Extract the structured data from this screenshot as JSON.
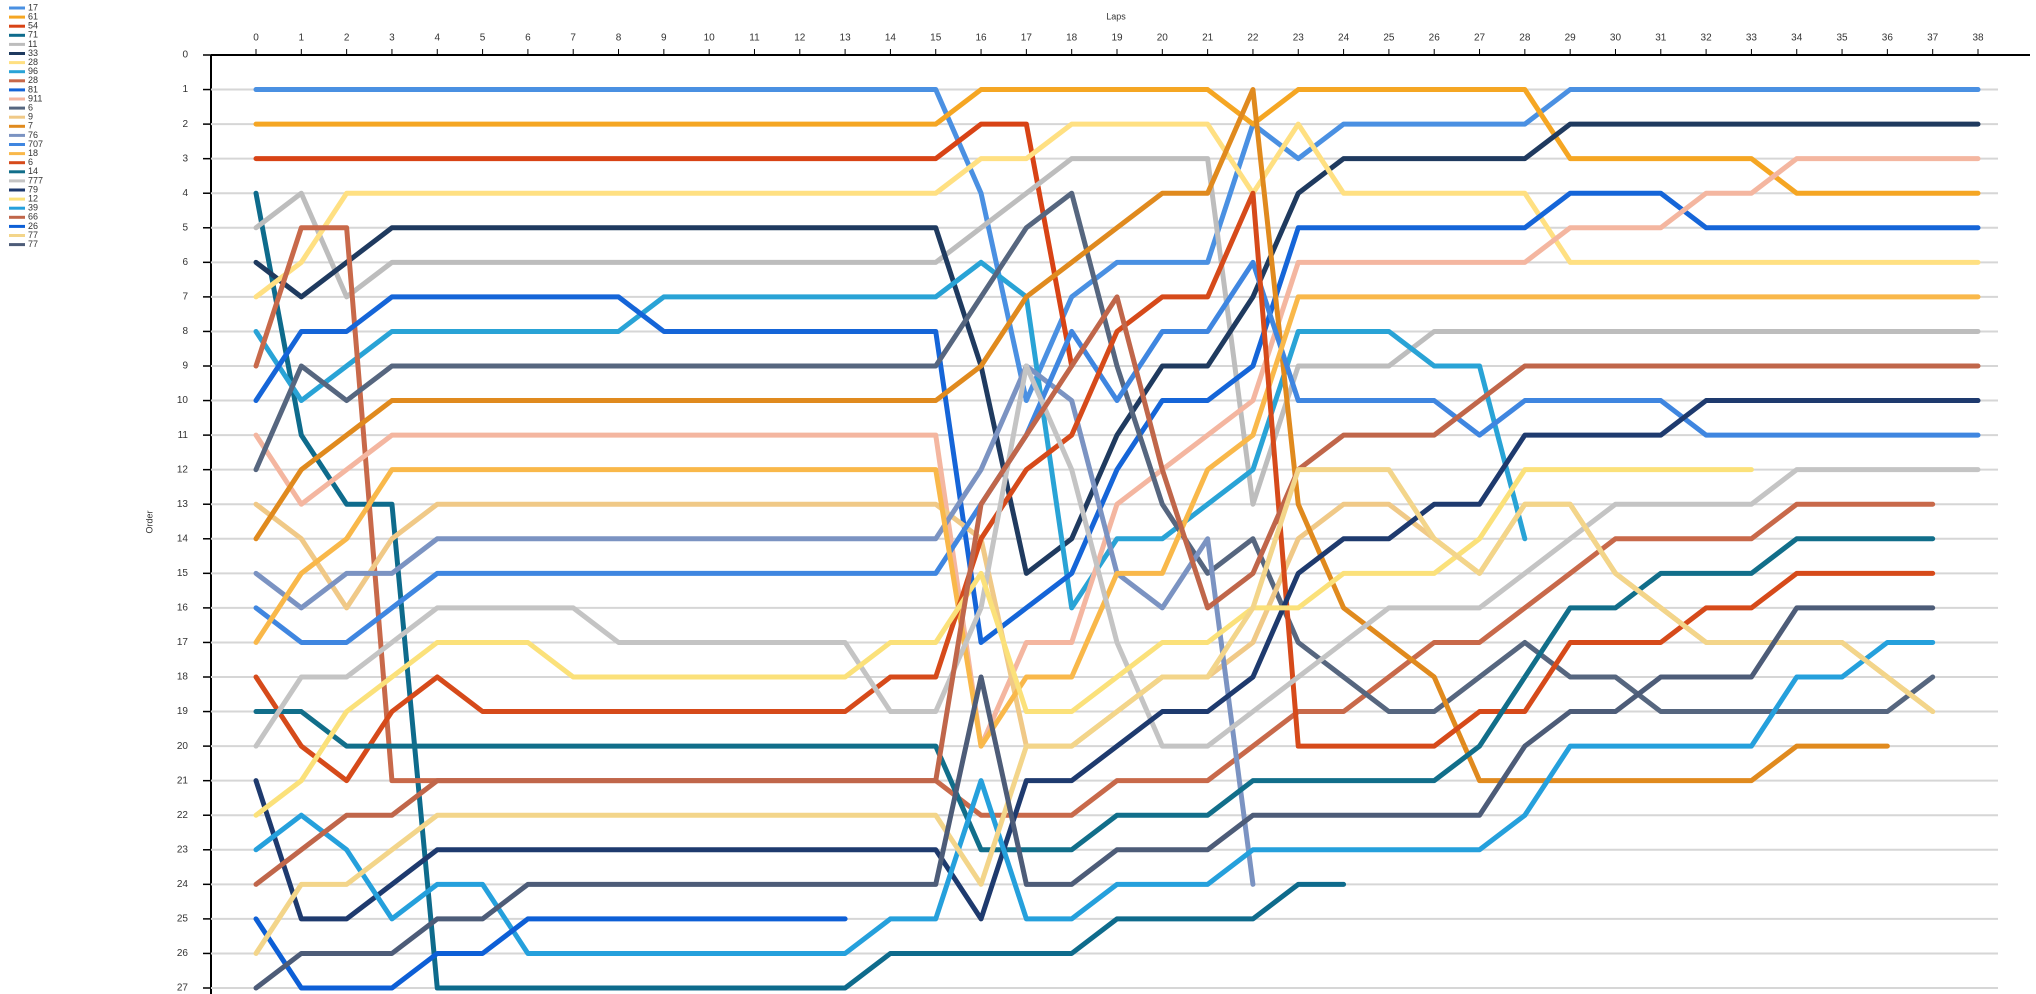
{
  "chart_data": {
    "type": "line",
    "x_label": "Laps",
    "y_label": "Order",
    "y_inverted": true,
    "grid": true,
    "legend": "top-left",
    "x": [
      0,
      1,
      2,
      3,
      4,
      5,
      6,
      7,
      8,
      9,
      10,
      11,
      12,
      13,
      14,
      15,
      16,
      17,
      18,
      19,
      20,
      21,
      22,
      23,
      24,
      25,
      26,
      27,
      28,
      29,
      30,
      31,
      32,
      33,
      34,
      35,
      36,
      37,
      38
    ],
    "xlim": [
      0,
      38
    ],
    "ylim": [
      0,
      27
    ],
    "xticks": [
      0,
      1,
      2,
      3,
      4,
      5,
      6,
      7,
      8,
      9,
      10,
      11,
      12,
      13,
      14,
      15,
      16,
      17,
      18,
      19,
      20,
      21,
      22,
      23,
      24,
      25,
      26,
      27,
      28,
      29,
      30,
      31,
      32,
      33,
      34,
      35,
      36,
      37,
      38
    ],
    "yticks": [
      0,
      1,
      2,
      3,
      4,
      5,
      6,
      7,
      8,
      9,
      10,
      11,
      12,
      13,
      14,
      15,
      16,
      17,
      18,
      19,
      20,
      21,
      22,
      23,
      24,
      25,
      26,
      27
    ],
    "series": [
      {
        "name": "17",
        "color": "#4a90e2",
        "values": [
          1,
          1,
          1,
          1,
          1,
          1,
          1,
          1,
          1,
          1,
          1,
          1,
          1,
          1,
          1,
          1,
          4,
          10,
          7,
          6,
          6,
          6,
          2,
          3,
          2,
          2,
          2,
          2,
          2,
          1,
          1,
          1,
          1,
          1,
          1,
          1,
          1,
          1,
          1
        ]
      },
      {
        "name": "61",
        "color": "#f5a623",
        "values": [
          2,
          2,
          2,
          2,
          2,
          2,
          2,
          2,
          2,
          2,
          2,
          2,
          2,
          2,
          2,
          2,
          1,
          1,
          1,
          1,
          1,
          1,
          2,
          1,
          1,
          1,
          1,
          1,
          1,
          3,
          3,
          3,
          3,
          3,
          4,
          4,
          4,
          4,
          4
        ]
      },
      {
        "name": "54",
        "color": "#d84315",
        "values": [
          3,
          3,
          3,
          3,
          3,
          3,
          3,
          3,
          3,
          3,
          3,
          3,
          3,
          3,
          3,
          3,
          2,
          2,
          9,
          null,
          null,
          null,
          null,
          null,
          null,
          null,
          null,
          null,
          null,
          null,
          null,
          null,
          null,
          null,
          null,
          null,
          null,
          null,
          null
        ]
      },
      {
        "name": "71",
        "color": "#0e6b8c",
        "values": [
          4,
          11,
          13,
          13,
          27,
          27,
          27,
          27,
          27,
          27,
          27,
          27,
          27,
          27,
          26,
          26,
          26,
          26,
          26,
          25,
          25,
          25,
          25,
          24,
          24,
          null,
          null,
          null,
          null,
          null,
          null,
          null,
          null,
          null,
          null,
          null,
          null,
          null,
          null
        ]
      },
      {
        "name": "11",
        "color": "#bdbdbd",
        "values": [
          5,
          4,
          7,
          6,
          6,
          6,
          6,
          6,
          6,
          6,
          6,
          6,
          6,
          6,
          6,
          6,
          5,
          4,
          3,
          3,
          3,
          3,
          13,
          9,
          9,
          9,
          8,
          8,
          8,
          8,
          8,
          8,
          8,
          8,
          8,
          8,
          8,
          8,
          8
        ]
      },
      {
        "name": "33",
        "color": "#1f3a5f",
        "values": [
          6,
          7,
          6,
          5,
          5,
          5,
          5,
          5,
          5,
          5,
          5,
          5,
          5,
          5,
          5,
          5,
          9,
          15,
          14,
          11,
          9,
          9,
          7,
          4,
          3,
          3,
          3,
          3,
          3,
          2,
          2,
          2,
          2,
          2,
          2,
          2,
          2,
          2,
          2
        ]
      },
      {
        "name": "28",
        "color": "#ffe082",
        "values": [
          7,
          6,
          4,
          4,
          4,
          4,
          4,
          4,
          4,
          4,
          4,
          4,
          4,
          4,
          4,
          4,
          3,
          3,
          2,
          2,
          2,
          2,
          4,
          2,
          4,
          4,
          4,
          4,
          4,
          6,
          6,
          6,
          6,
          6,
          6,
          6,
          6,
          6,
          6
        ]
      },
      {
        "name": "96",
        "color": "#29a3d6",
        "values": [
          8,
          10,
          9,
          8,
          8,
          8,
          8,
          8,
          8,
          7,
          7,
          7,
          7,
          7,
          7,
          7,
          6,
          7,
          16,
          14,
          14,
          13,
          12,
          8,
          8,
          8,
          9,
          9,
          14,
          null,
          null,
          null,
          null,
          null,
          null,
          null,
          null,
          null,
          null
        ]
      },
      {
        "name": "28",
        "color": "#c8694a",
        "values": [
          9,
          5,
          5,
          21,
          21,
          21,
          21,
          21,
          21,
          21,
          21,
          21,
          21,
          21,
          21,
          21,
          22,
          22,
          22,
          21,
          21,
          21,
          20,
          19,
          19,
          18,
          17,
          17,
          16,
          15,
          14,
          14,
          14,
          14,
          13,
          13,
          13,
          13,
          null
        ]
      },
      {
        "name": "81",
        "color": "#1565d8",
        "values": [
          10,
          8,
          8,
          7,
          7,
          7,
          7,
          7,
          7,
          8,
          8,
          8,
          8,
          8,
          8,
          8,
          17,
          16,
          15,
          12,
          10,
          10,
          9,
          5,
          5,
          5,
          5,
          5,
          5,
          4,
          4,
          4,
          5,
          5,
          5,
          5,
          5,
          5,
          5
        ]
      },
      {
        "name": "911",
        "color": "#f4b6a0",
        "values": [
          11,
          13,
          12,
          11,
          11,
          11,
          11,
          11,
          11,
          11,
          11,
          11,
          11,
          11,
          11,
          11,
          20,
          17,
          17,
          13,
          12,
          11,
          10,
          6,
          6,
          6,
          6,
          6,
          6,
          5,
          5,
          5,
          4,
          4,
          3,
          3,
          3,
          3,
          3
        ]
      },
      {
        "name": "6",
        "color": "#56667f",
        "values": [
          12,
          9,
          10,
          9,
          9,
          9,
          9,
          9,
          9,
          9,
          9,
          9,
          9,
          9,
          9,
          9,
          7,
          5,
          4,
          9,
          13,
          15,
          14,
          17,
          18,
          19,
          19,
          18,
          17,
          18,
          18,
          19,
          19,
          19,
          19,
          19,
          19,
          18,
          null
        ]
      },
      {
        "name": "9",
        "color": "#f0c987",
        "values": [
          13,
          14,
          16,
          14,
          13,
          13,
          13,
          13,
          13,
          13,
          13,
          13,
          13,
          13,
          13,
          13,
          14,
          20,
          20,
          19,
          18,
          18,
          17,
          14,
          13,
          13,
          14,
          15,
          13,
          13,
          15,
          16,
          17,
          17,
          17,
          17,
          18,
          19,
          null
        ]
      },
      {
        "name": "7",
        "color": "#e08a1e",
        "values": [
          14,
          12,
          11,
          10,
          10,
          10,
          10,
          10,
          10,
          10,
          10,
          10,
          10,
          10,
          10,
          10,
          9,
          7,
          6,
          5,
          4,
          4,
          1,
          13,
          16,
          17,
          18,
          21,
          21,
          21,
          21,
          21,
          21,
          21,
          20,
          20,
          20,
          null,
          null
        ]
      },
      {
        "name": "76",
        "color": "#7b93c2",
        "values": [
          15,
          16,
          15,
          15,
          14,
          14,
          14,
          14,
          14,
          14,
          14,
          14,
          14,
          14,
          14,
          14,
          12,
          9,
          10,
          15,
          16,
          14,
          24,
          null,
          null,
          null,
          null,
          null,
          null,
          null,
          null,
          null,
          null,
          null,
          null,
          null,
          null,
          null,
          null
        ]
      },
      {
        "name": "707",
        "color": "#3f86e0",
        "values": [
          16,
          17,
          17,
          16,
          15,
          15,
          15,
          15,
          15,
          15,
          15,
          15,
          15,
          15,
          15,
          15,
          13,
          11,
          8,
          10,
          8,
          8,
          6,
          10,
          10,
          10,
          10,
          11,
          10,
          10,
          10,
          10,
          11,
          11,
          11,
          11,
          11,
          11,
          11
        ]
      },
      {
        "name": "18",
        "color": "#f9b84a",
        "values": [
          17,
          15,
          14,
          12,
          12,
          12,
          12,
          12,
          12,
          12,
          12,
          12,
          12,
          12,
          12,
          12,
          20,
          18,
          18,
          15,
          15,
          12,
          11,
          7,
          7,
          7,
          7,
          7,
          7,
          7,
          7,
          7,
          7,
          7,
          7,
          7,
          7,
          7,
          7
        ]
      },
      {
        "name": "6",
        "color": "#d64a1a",
        "values": [
          18,
          20,
          21,
          19,
          18,
          19,
          19,
          19,
          19,
          19,
          19,
          19,
          19,
          19,
          18,
          18,
          14,
          12,
          11,
          8,
          7,
          7,
          4,
          20,
          20,
          20,
          20,
          19,
          19,
          17,
          17,
          17,
          16,
          16,
          15,
          15,
          15,
          15,
          null
        ]
      },
      {
        "name": "14",
        "color": "#116e8a",
        "values": [
          19,
          19,
          20,
          20,
          20,
          20,
          20,
          20,
          20,
          20,
          20,
          20,
          20,
          20,
          20,
          20,
          23,
          23,
          23,
          22,
          22,
          22,
          21,
          21,
          21,
          21,
          21,
          20,
          18,
          16,
          16,
          15,
          15,
          15,
          14,
          14,
          14,
          14,
          null
        ]
      },
      {
        "name": "777",
        "color": "#c4c4c4",
        "values": [
          20,
          18,
          18,
          17,
          16,
          16,
          16,
          16,
          17,
          17,
          17,
          17,
          17,
          17,
          19,
          19,
          16,
          9,
          12,
          17,
          20,
          20,
          19,
          18,
          17,
          16,
          16,
          16,
          15,
          14,
          13,
          13,
          13,
          13,
          12,
          12,
          12,
          12,
          12
        ]
      },
      {
        "name": "79",
        "color": "#1e3a6e",
        "values": [
          21,
          25,
          25,
          24,
          23,
          23,
          23,
          23,
          23,
          23,
          23,
          23,
          23,
          23,
          23,
          23,
          25,
          21,
          21,
          20,
          19,
          19,
          18,
          15,
          14,
          14,
          13,
          13,
          11,
          11,
          11,
          11,
          10,
          10,
          10,
          10,
          10,
          10,
          10
        ]
      },
      {
        "name": "12",
        "color": "#fbe17a",
        "values": [
          22,
          21,
          19,
          18,
          17,
          17,
          17,
          18,
          18,
          18,
          18,
          18,
          18,
          18,
          17,
          17,
          15,
          19,
          19,
          18,
          17,
          17,
          16,
          16,
          15,
          15,
          15,
          14,
          12,
          12,
          12,
          12,
          12,
          12,
          null,
          null,
          null,
          null,
          null
        ]
      },
      {
        "name": "39",
        "color": "#25a0dc",
        "values": [
          23,
          22,
          23,
          25,
          24,
          24,
          26,
          26,
          26,
          26,
          26,
          26,
          26,
          26,
          25,
          25,
          21,
          25,
          25,
          24,
          24,
          24,
          23,
          23,
          23,
          23,
          23,
          23,
          22,
          20,
          20,
          20,
          20,
          20,
          18,
          18,
          17,
          17,
          null
        ]
      },
      {
        "name": "66",
        "color": "#c0664a",
        "values": [
          24,
          23,
          22,
          22,
          21,
          21,
          21,
          21,
          21,
          21,
          21,
          21,
          21,
          21,
          21,
          21,
          13,
          11,
          9,
          7,
          12,
          16,
          15,
          12,
          11,
          11,
          11,
          10,
          9,
          9,
          9,
          9,
          9,
          9,
          9,
          9,
          9,
          9,
          9
        ]
      },
      {
        "name": "26",
        "color": "#0d5fd6",
        "values": [
          25,
          27,
          27,
          27,
          26,
          26,
          25,
          25,
          25,
          25,
          25,
          25,
          25,
          25,
          null,
          null,
          null,
          null,
          null,
          null,
          null,
          null,
          null,
          null,
          null,
          null,
          null,
          null,
          null,
          null,
          null,
          null,
          null,
          null,
          null,
          null,
          null,
          null,
          null
        ]
      },
      {
        "name": "77",
        "color": "#f3d58a",
        "values": [
          26,
          24,
          24,
          23,
          22,
          22,
          22,
          22,
          22,
          22,
          22,
          22,
          22,
          22,
          22,
          22,
          24,
          20,
          20,
          19,
          18,
          18,
          16,
          12,
          12,
          12,
          14,
          15,
          13,
          13,
          15,
          16,
          17,
          17,
          17,
          17,
          18,
          19,
          null
        ]
      },
      {
        "name": "77",
        "color": "#4d5c78",
        "values": [
          27,
          26,
          26,
          26,
          25,
          25,
          24,
          24,
          24,
          24,
          24,
          24,
          24,
          24,
          24,
          24,
          18,
          24,
          24,
          23,
          23,
          23,
          22,
          22,
          22,
          22,
          22,
          22,
          20,
          19,
          19,
          18,
          18,
          18,
          16,
          16,
          16,
          16,
          null
        ]
      }
    ]
  }
}
